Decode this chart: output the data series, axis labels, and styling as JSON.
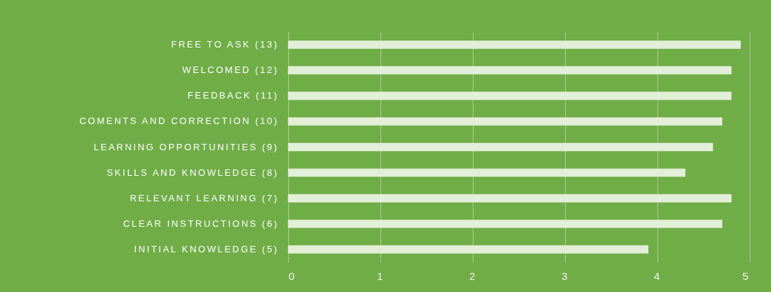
{
  "chart_data": {
    "type": "bar",
    "orientation": "horizontal",
    "categories": [
      "FREE TO ASK (13)",
      "WELCOMED (12)",
      "FEEDBACK (11)",
      "COMENTS AND CORRECTION (10)",
      "LEARNING OPPORTUNITIES (9)",
      "SKILLS AND KNOWLEDGE (8)",
      "RELEVANT LEARNING (7)",
      "CLEAR INSTRUCTIONS (6)",
      "INITIAL KNOWLEDGE (5)"
    ],
    "values": [
      4.9,
      4.8,
      4.8,
      4.7,
      4.6,
      4.3,
      4.8,
      4.7,
      3.9
    ],
    "color": "#e2eed8",
    "xlim": [
      0,
      5
    ],
    "xticks": [
      0,
      1,
      2,
      3,
      4,
      5
    ],
    "grid": "x"
  }
}
